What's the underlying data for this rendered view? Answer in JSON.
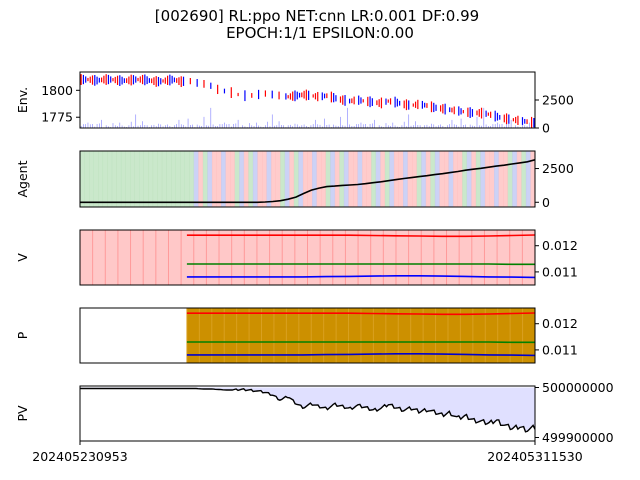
{
  "chart_data": {
    "type": "line",
    "title": "[002690] RL:ppo NET:cnn LR:0.001 DF:0.99\nEPOCH:1/1 EPSILON:0.00",
    "x_tick_labels": [
      "202405230953",
      "202405311530"
    ],
    "panels": [
      {
        "name": "env",
        "ylabel": "Env.",
        "left_axis": {
          "ticks": [
            1775,
            1800
          ],
          "range": [
            1765,
            1817
          ]
        },
        "right_axis": {
          "ticks": [
            0,
            2500
          ],
          "range": [
            0,
            5000
          ]
        },
        "series": [
          {
            "name": "price",
            "kind": "candlestick",
            "up_color": "#ff0000",
            "down_color": "#0000ff"
          },
          {
            "name": "volume",
            "kind": "bar",
            "color": "#0000ff"
          }
        ],
        "price_path": [
          1810,
          1810,
          1809,
          1810,
          1810,
          1809,
          1809,
          1810,
          1810,
          1809,
          1808,
          1809,
          1810,
          1808,
          1809,
          1807,
          1806,
          1804,
          1800,
          1799,
          1797,
          1795,
          1795,
          1796,
          1797,
          1796,
          1795,
          1794,
          1795,
          1796,
          1795,
          1794,
          1795,
          1793,
          1791,
          1790,
          1791,
          1790,
          1789,
          1788,
          1790,
          1789,
          1787,
          1786,
          1787,
          1786,
          1784,
          1783,
          1782,
          1781,
          1780,
          1779,
          1779,
          1778,
          1776,
          1774,
          1773,
          1772,
          1771,
          1770
        ],
        "volume_path": [
          600,
          1800,
          500,
          1200,
          300,
          400,
          250,
          350,
          300,
          500,
          200,
          450,
          300,
          200,
          500,
          350,
          300,
          250,
          900,
          200,
          300,
          1200,
          250,
          400,
          200,
          300,
          350,
          250,
          300,
          700,
          250,
          200,
          400,
          300,
          800,
          450,
          300,
          250,
          400,
          1500,
          300,
          350,
          250,
          500,
          400,
          300,
          350,
          250,
          1100,
          300,
          250,
          400,
          350,
          300,
          500,
          250,
          450,
          300,
          350,
          400
        ]
      },
      {
        "name": "agent",
        "ylabel": "Agent",
        "right_axis": {
          "ticks": [
            0,
            2500
          ],
          "range": [
            -350,
            3800
          ]
        },
        "series": [
          {
            "name": "agent",
            "color": "#000000"
          }
        ],
        "background_colors": {
          "hold": "#a6d8a8",
          "buy": "#ffaaaa",
          "sell": "#aab4f0"
        },
        "values": [
          0,
          0,
          0,
          0,
          0,
          0,
          0,
          0,
          0,
          0,
          0,
          0,
          0,
          0,
          0,
          0,
          0,
          0,
          0,
          0,
          0,
          0,
          0,
          0,
          20,
          60,
          120,
          230,
          380,
          650,
          900,
          1050,
          1160,
          1200,
          1250,
          1280,
          1320,
          1380,
          1450,
          1520,
          1600,
          1680,
          1760,
          1830,
          1900,
          1970,
          2050,
          2120,
          2200,
          2280,
          2380,
          2450,
          2520,
          2600,
          2680,
          2750,
          2840,
          2920,
          3000,
          3150
        ]
      },
      {
        "name": "value",
        "ylabel": "V",
        "right_axis": {
          "ticks": [
            0.011,
            0.012
          ],
          "range": [
            0.0105,
            0.0126
          ]
        },
        "background_color": "#ffc8c8",
        "series": [
          {
            "name": "red",
            "color": "#ff0000",
            "values": [
              0.0124,
              0.0124,
              0.0124,
              0.0124,
              0.0124,
              0.0124,
              0.0124,
              0.0124,
              0.01239,
              0.01238,
              0.01237,
              0.01236,
              0.01236,
              0.01237,
              0.01239,
              0.01241
            ]
          },
          {
            "name": "green",
            "color": "#008000",
            "values": [
              0.0113,
              0.0113,
              0.0113,
              0.0113,
              0.0113,
              0.0113,
              0.0113,
              0.0113,
              0.0113,
              0.0113,
              0.0113,
              0.0113,
              0.0113,
              0.0113,
              0.01129,
              0.01129
            ]
          },
          {
            "name": "blue",
            "color": "#0000ff",
            "values": [
              0.01081,
              0.01081,
              0.01081,
              0.01081,
              0.01081,
              0.01081,
              0.01082,
              0.01083,
              0.01084,
              0.01085,
              0.01085,
              0.01084,
              0.01083,
              0.01081,
              0.0108,
              0.01079
            ]
          }
        ]
      },
      {
        "name": "policy",
        "ylabel": "P",
        "right_axis": {
          "ticks": [
            0.011,
            0.012
          ],
          "range": [
            0.0105,
            0.0126
          ]
        },
        "background_color": "#cc9000",
        "series": [
          {
            "name": "red",
            "color": "#ff0000",
            "values": [
              0.0124,
              0.0124,
              0.0124,
              0.0124,
              0.0124,
              0.0124,
              0.0124,
              0.0124,
              0.01239,
              0.01238,
              0.01237,
              0.01236,
              0.01236,
              0.01237,
              0.01239,
              0.01241
            ]
          },
          {
            "name": "green",
            "color": "#008000",
            "values": [
              0.0113,
              0.0113,
              0.0113,
              0.0113,
              0.0113,
              0.0113,
              0.0113,
              0.0113,
              0.0113,
              0.0113,
              0.0113,
              0.0113,
              0.0113,
              0.0113,
              0.01129,
              0.01129
            ]
          },
          {
            "name": "blue",
            "color": "#0000cc",
            "values": [
              0.01081,
              0.01081,
              0.01081,
              0.01081,
              0.01081,
              0.01081,
              0.01082,
              0.01083,
              0.01084,
              0.01085,
              0.01085,
              0.01084,
              0.01083,
              0.01081,
              0.0108,
              0.01079
            ]
          }
        ]
      },
      {
        "name": "portfolio_value",
        "ylabel": "PV",
        "right_axis": {
          "ticks": [
            499900000,
            500000000
          ],
          "range": [
            499893000,
            500003000
          ]
        },
        "series": [
          {
            "name": "pv",
            "color": "#000000",
            "fill": "#e0e0ff"
          }
        ],
        "values": [
          499998000,
          499998000,
          499998000,
          499998000,
          499998000,
          499998000,
          499998000,
          499998000,
          499998000,
          499998000,
          499998000,
          499998000,
          499998000,
          499998000,
          499998000,
          499998000,
          499997000,
          499997000,
          499996000,
          499995000,
          499995000,
          499996000,
          499995000,
          499993000,
          499990000,
          499985000,
          499975000,
          499982000,
          499968000,
          499960000,
          499967000,
          499962000,
          499958000,
          499966000,
          499962000,
          499958000,
          499964000,
          499960000,
          499955000,
          499958000,
          499966000,
          499960000,
          499955000,
          499958000,
          499952000,
          499956000,
          499950000,
          499945000,
          499950000,
          499938000,
          499943000,
          499935000,
          499932000,
          499928000,
          499935000,
          499925000,
          499918000,
          499922000,
          499915000,
          499920000
        ]
      }
    ]
  }
}
